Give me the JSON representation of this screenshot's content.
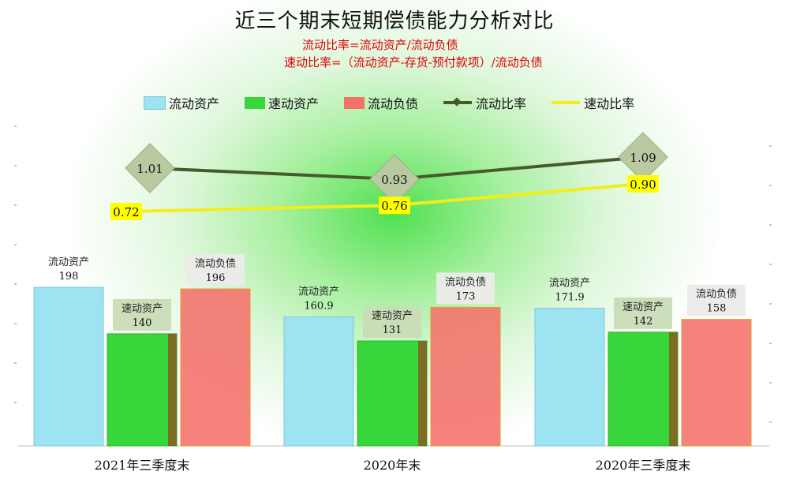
{
  "title": "近三个期末短期偿债能力分析对比",
  "formulas": [
    "流动比率=流动资产/流动负债",
    "速动比率=（流动资产-存货-预付款项）/流动负债"
  ],
  "legend": [
    {
      "label": "流动资产",
      "kind": "bar",
      "color": "#9ee3f2"
    },
    {
      "label": "速动资产",
      "kind": "bar",
      "color": "#37d63a"
    },
    {
      "label": "流动负债",
      "kind": "bar",
      "color": "#f4716a"
    },
    {
      "label": "流动比率",
      "kind": "line",
      "color": "#475a2e"
    },
    {
      "label": "速动比率",
      "kind": "line",
      "color": "#f2ee1a"
    }
  ],
  "chart_data": {
    "type": "bar",
    "categories": [
      "2021年三季度末",
      "2020年末",
      "2020年三季度末"
    ],
    "series": [
      {
        "name": "流动资产",
        "values": [
          198,
          160.9,
          171.9
        ],
        "color": "#9ee3f2"
      },
      {
        "name": "速动资产",
        "values": [
          140,
          131,
          142
        ],
        "color": "#37d63a"
      },
      {
        "name": "流动负债",
        "values": [
          196,
          173,
          158
        ],
        "color": "#f4716a"
      }
    ],
    "lines": [
      {
        "name": "流动比率",
        "values": [
          1.01,
          0.93,
          1.09
        ],
        "color": "#475a2e"
      },
      {
        "name": "速动比率",
        "values": [
          0.72,
          0.76,
          0.9
        ],
        "color": "#f2ee1a"
      }
    ],
    "value_labels": [
      [
        "198",
        "160.9",
        "171.9"
      ],
      [
        "140",
        "131",
        "142"
      ],
      [
        "196",
        "173",
        "158"
      ]
    ],
    "ratio_labels": [
      [
        "1.01",
        "0.93",
        "1.09"
      ],
      [
        "0.72",
        "0.76",
        "0.90"
      ]
    ]
  }
}
